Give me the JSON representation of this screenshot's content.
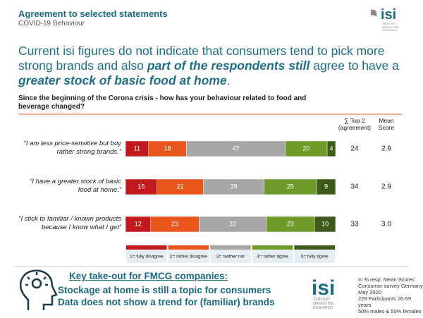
{
  "header": {
    "title": "Agreement to selected statements",
    "subtitle": "COVID-19 Behaviour"
  },
  "logo": {
    "text": "isi",
    "lines": [
      "SENSORY",
      "MARKETING",
      "RESEARCH"
    ]
  },
  "headline": [
    {
      "text": "Current isi figures do not indicate that consumers tend to pick more strong brands and also ",
      "style": "normal"
    },
    {
      "text": "part of the respondents still",
      "style": "bold-italic"
    },
    {
      "text": " agree to have a ",
      "style": "normal"
    },
    {
      "text": "greater stock of basic food at home",
      "style": "bold-italic"
    },
    {
      "text": ".",
      "style": "normal"
    }
  ],
  "chart_data": {
    "type": "stacked-bar",
    "orientation": "horizontal",
    "title": "Since the beginning of the Corona crisis - how has your behaviour related to food and beverage changed?",
    "categories": [
      "“I am less price-sensitive but buy rather strong brands.”",
      "“I have a greater stock of basic food at home.”",
      "“I stick to familiar / known products because I know what I get”"
    ],
    "xlim": [
      0,
      100
    ],
    "series": [
      {
        "name": "1= fully disagree",
        "color": "#c0191e",
        "values": [
          11,
          15,
          12
        ]
      },
      {
        "name": "2= rather disagree",
        "color": "#e8561e",
        "values": [
          18,
          22,
          23
        ]
      },
      {
        "name": "3= neither nor",
        "color": "#a6a6a6",
        "values": [
          47,
          29,
          32
        ]
      },
      {
        "name": "4= rather agree",
        "color": "#6e9a2a",
        "values": [
          20,
          25,
          23
        ]
      },
      {
        "name": "5= fully agree",
        "color": "#3d5a1a",
        "values": [
          4,
          9,
          10
        ]
      }
    ],
    "top2": {
      "label": "∑ Top 2 (agreement)",
      "values": [
        24,
        34,
        33
      ]
    },
    "mean": {
      "label": "Mean Score",
      "values": [
        2.9,
        2.9,
        3.0
      ],
      "value_labels": [
        "2.9",
        "2.9",
        "3.0"
      ]
    }
  },
  "takeout": {
    "title": "Key take-out for FMCG companies:",
    "lines": [
      "Stockage at home is still a topic for consumers",
      "Data does not show a trend for (familiar) brands"
    ]
  },
  "notes": [
    "In % resp. Mean Scores",
    "Consumer survey Germany",
    "May 2020",
    "229 Participants 20-59 years",
    "50% males & 50% females"
  ]
}
